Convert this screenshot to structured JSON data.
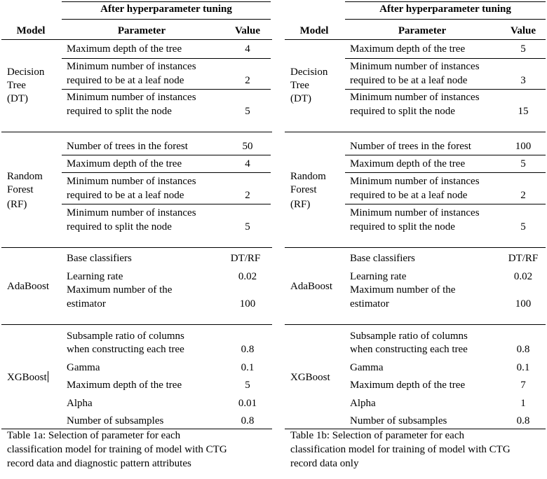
{
  "tables": [
    {
      "id": "1a",
      "heading": "After hyperparameter tuning",
      "col_model": "Model",
      "col_parameter": "Parameter",
      "col_value": "Value",
      "groups": [
        {
          "model_lines": [
            "Decision",
            "Tree",
            "(DT)"
          ],
          "rows": [
            {
              "param_lines": [
                "Maximum depth of the tree"
              ],
              "value": "4"
            },
            {
              "param_lines": [
                "Minimum number of instances",
                "required to be at a leaf node"
              ],
              "value": "2"
            },
            {
              "param_lines": [
                "Minimum number of instances",
                "required to split the node"
              ],
              "value": "5"
            }
          ]
        },
        {
          "model_lines": [
            "Random",
            "Forest",
            "(RF)"
          ],
          "rows": [
            {
              "param_lines": [
                "Number of trees in the forest"
              ],
              "value": "50"
            },
            {
              "param_lines": [
                "Maximum depth of the tree"
              ],
              "value": "4"
            },
            {
              "param_lines": [
                "Minimum number of instances",
                "required to be at a leaf node"
              ],
              "value": "2"
            },
            {
              "param_lines": [
                "Minimum number of instances",
                "required to split the node"
              ],
              "value": "5"
            }
          ]
        },
        {
          "model_lines": [
            "AdaBoost"
          ],
          "rows": [
            {
              "param_lines": [
                "Base classifiers"
              ],
              "value": "DT/RF"
            },
            {
              "param_lines": [
                "Learning rate"
              ],
              "value": "0.02"
            },
            {
              "param_lines": [
                "Maximum number of the",
                "estimator"
              ],
              "value": "100"
            }
          ]
        },
        {
          "model_lines": [
            "XGBoost"
          ],
          "rows": [
            {
              "param_lines": [
                "Subsample ratio of columns",
                "when constructing each tree"
              ],
              "value": "0.8"
            },
            {
              "param_lines": [
                "Gamma"
              ],
              "value": "0.1"
            },
            {
              "param_lines": [
                "Maximum depth of the tree"
              ],
              "value": "5"
            },
            {
              "param_lines": [
                "Alpha"
              ],
              "value": "0.01"
            },
            {
              "param_lines": [
                "Number of subsamples"
              ],
              "value": "0.8"
            }
          ]
        }
      ],
      "caption_lines": [
        "Table 1a: Selection of parameter for each",
        "classification model for training of model with CTG",
        "record data and diagnostic pattern attributes"
      ]
    },
    {
      "id": "1b",
      "heading": "After hyperparameter tuning",
      "col_model": "Model",
      "col_parameter": "Parameter",
      "col_value": "Value",
      "groups": [
        {
          "model_lines": [
            "Decision",
            "Tree",
            "(DT)"
          ],
          "rows": [
            {
              "param_lines": [
                "Maximum depth of the tree"
              ],
              "value": "5"
            },
            {
              "param_lines": [
                "Minimum number of instances",
                "required to be at a leaf node"
              ],
              "value": "3"
            },
            {
              "param_lines": [
                "Minimum number of instances",
                "required to split the node"
              ],
              "value": "15"
            }
          ]
        },
        {
          "model_lines": [
            "Random",
            "Forest",
            "(RF)"
          ],
          "rows": [
            {
              "param_lines": [
                "Number of trees in the forest"
              ],
              "value": "100"
            },
            {
              "param_lines": [
                "Maximum depth of the tree"
              ],
              "value": "5"
            },
            {
              "param_lines": [
                "Minimum number of instances",
                "required to be at a leaf node"
              ],
              "value": "2"
            },
            {
              "param_lines": [
                "Minimum number of instances",
                "required to split the node"
              ],
              "value": "5"
            }
          ]
        },
        {
          "model_lines": [
            "AdaBoost"
          ],
          "rows": [
            {
              "param_lines": [
                "Base classifiers"
              ],
              "value": "DT/RF"
            },
            {
              "param_lines": [
                "Learning rate"
              ],
              "value": "0.02"
            },
            {
              "param_lines": [
                "Maximum number of the",
                "estimator"
              ],
              "value": "100"
            }
          ]
        },
        {
          "model_lines": [
            "XGBoost"
          ],
          "rows": [
            {
              "param_lines": [
                "Subsample ratio of columns",
                "when constructing each tree"
              ],
              "value": "0.8"
            },
            {
              "param_lines": [
                "Gamma"
              ],
              "value": "0.1"
            },
            {
              "param_lines": [
                "Maximum depth of the tree"
              ],
              "value": "7"
            },
            {
              "param_lines": [
                "Alpha"
              ],
              "value": "1"
            },
            {
              "param_lines": [
                "Number of subsamples"
              ],
              "value": "0.8"
            }
          ]
        }
      ],
      "caption_lines": [
        "Table 1b: Selection of parameter for each",
        "classification model for training of model with CTG",
        "record data only"
      ]
    }
  ]
}
